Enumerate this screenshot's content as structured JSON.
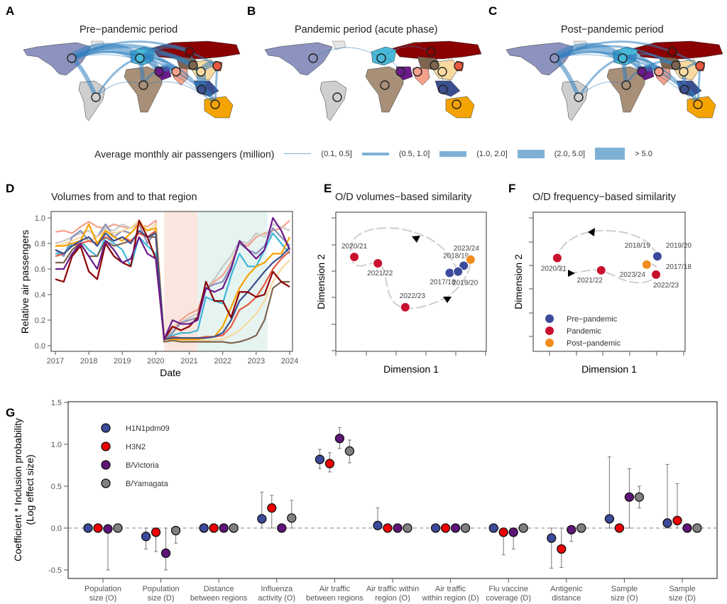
{
  "panels": {
    "A": "A",
    "B": "B",
    "C": "C",
    "D": "D",
    "E": "E",
    "F": "F",
    "G": "G"
  },
  "maps": {
    "titles": [
      "Pre−pandemic period",
      "Pandemic period (acute phase)",
      "Post−pandemic period"
    ],
    "region_colors": {
      "north_america": "#8c93bf",
      "south_america": "#cfcfcf",
      "europe": "#4ab8d8",
      "africa": "#a88f78",
      "middle_east": "#6a1b8a",
      "south_asia": "#f4a08a",
      "russia": "#8b0000",
      "central_asia": "#7f6450",
      "china": "#f8d9a0",
      "japan": "#e85a40",
      "southeast_asia": "#3b4f8f",
      "oceania": "#f5a300"
    },
    "edges": [
      [
        [
          "north_america",
          "europe",
          5
        ],
        [
          "north_america",
          "south_america",
          3
        ],
        [
          "europe",
          "africa",
          3
        ],
        [
          "europe",
          "middle_east",
          4
        ],
        [
          "europe",
          "south_asia",
          3
        ],
        [
          "europe",
          "china",
          3
        ],
        [
          "china",
          "southeast_asia",
          5
        ],
        [
          "china",
          "japan",
          4
        ],
        [
          "southeast_asia",
          "oceania",
          3
        ],
        [
          "north_america",
          "china",
          3
        ],
        [
          "north_america",
          "japan",
          2
        ],
        [
          "europe",
          "russia",
          3
        ],
        [
          "middle_east",
          "south_asia",
          4
        ],
        [
          "south_america",
          "europe",
          2
        ],
        [
          "africa",
          "middle_east",
          2
        ],
        [
          "north_america",
          "oceania",
          1
        ],
        [
          "europe",
          "southeast_asia",
          2
        ],
        [
          "south_america",
          "africa",
          1
        ],
        [
          "africa",
          "oceania",
          1
        ],
        [
          "japan",
          "oceania",
          2
        ],
        [
          "central_asia",
          "russia",
          2
        ],
        [
          "north_america",
          "southeast_asia",
          2
        ]
      ],
      [
        [
          "north_america",
          "europe",
          1
        ],
        [
          "europe",
          "middle_east",
          1
        ],
        [
          "china",
          "southeast_asia",
          1
        ],
        [
          "europe",
          "russia",
          1
        ]
      ],
      [
        [
          "north_america",
          "europe",
          5
        ],
        [
          "north_america",
          "south_america",
          3
        ],
        [
          "europe",
          "africa",
          3
        ],
        [
          "europe",
          "middle_east",
          4
        ],
        [
          "europe",
          "south_asia",
          3
        ],
        [
          "europe",
          "china",
          2
        ],
        [
          "china",
          "southeast_asia",
          3
        ],
        [
          "china",
          "japan",
          2
        ],
        [
          "southeast_asia",
          "oceania",
          3
        ],
        [
          "north_america",
          "china",
          2
        ],
        [
          "north_america",
          "japan",
          2
        ],
        [
          "middle_east",
          "south_asia",
          4
        ],
        [
          "south_america",
          "europe",
          2
        ],
        [
          "africa",
          "middle_east",
          2
        ],
        [
          "north_america",
          "oceania",
          1
        ],
        [
          "europe",
          "southeast_asia",
          2
        ],
        [
          "south_america",
          "africa",
          1
        ],
        [
          "japan",
          "oceania",
          2
        ],
        [
          "north_america",
          "southeast_asia",
          2
        ],
        [
          "central_asia",
          "middle_east",
          2
        ]
      ]
    ],
    "legend": {
      "title": "Average monthly air passengers (million)",
      "items": [
        "(0.1, 0.5]",
        "(0.5, 1.0]",
        "(1.0, 2.0]",
        "(2.0, 5.0]",
        "> 5.0"
      ],
      "color": "#7fb1d6"
    }
  },
  "chart_data": [
    {
      "type": "line",
      "title": "Volumes from and to that region",
      "xlabel": "Date",
      "ylabel": "Relative air passengers",
      "xlim": [
        "2017-01",
        "2024-01"
      ],
      "ylim": [
        0,
        1.0
      ],
      "xticks": [
        "2017",
        "2018",
        "2019",
        "2020",
        "2021",
        "2022",
        "2023",
        "2024"
      ],
      "yticks": [
        "0.0",
        "0.2",
        "0.4",
        "0.6",
        "0.8",
        "1.0"
      ],
      "shaded_periods": [
        {
          "from": "2020-04",
          "to": "2021-04",
          "color": "#fbe6df"
        },
        {
          "from": "2021-04",
          "to": "2023-05",
          "color": "#e6f4f1"
        }
      ],
      "x": [
        "2017-01",
        "2017-04",
        "2017-07",
        "2017-10",
        "2018-01",
        "2018-04",
        "2018-07",
        "2018-10",
        "2019-01",
        "2019-04",
        "2019-07",
        "2019-10",
        "2020-01",
        "2020-04",
        "2020-07",
        "2020-10",
        "2021-01",
        "2021-04",
        "2021-07",
        "2021-10",
        "2022-01",
        "2022-04",
        "2022-07",
        "2022-10",
        "2023-01",
        "2023-04",
        "2023-07",
        "2023-10",
        "2024-01"
      ],
      "series": [
        {
          "color": "#f4a08a",
          "values": [
            0.89,
            0.9,
            0.88,
            0.93,
            0.97,
            0.93,
            0.92,
            0.95,
            0.93,
            0.92,
            0.95,
            0.93,
            0.98,
            0.05,
            0.12,
            0.2,
            0.25,
            0.28,
            0.45,
            0.5,
            0.55,
            0.65,
            0.8,
            0.78,
            0.85,
            0.88,
            0.9,
            0.92,
            0.98
          ]
        },
        {
          "color": "#c8c8c8",
          "values": [
            0.8,
            0.82,
            0.85,
            0.88,
            0.9,
            0.85,
            0.92,
            0.9,
            0.95,
            0.92,
            0.97,
            0.9,
            0.95,
            0.05,
            0.12,
            0.18,
            0.22,
            0.25,
            0.45,
            0.52,
            0.62,
            0.7,
            0.82,
            0.8,
            0.88,
            0.85,
            0.95,
            0.93,
            0.9
          ]
        },
        {
          "color": "#8890b8",
          "values": [
            0.75,
            0.7,
            0.85,
            0.9,
            0.82,
            0.85,
            0.95,
            0.85,
            0.9,
            0.88,
            0.95,
            0.8,
            0.9,
            0.05,
            0.1,
            0.18,
            0.2,
            0.22,
            0.45,
            0.48,
            0.5,
            0.62,
            0.8,
            0.75,
            0.72,
            0.78,
            0.92,
            0.85,
            0.78
          ]
        },
        {
          "color": "#3fb6d8",
          "values": [
            0.72,
            0.72,
            0.8,
            0.82,
            0.75,
            0.7,
            0.85,
            0.8,
            0.75,
            0.62,
            0.85,
            0.78,
            0.72,
            0.05,
            0.08,
            0.1,
            0.1,
            0.12,
            0.38,
            0.35,
            0.33,
            0.55,
            0.72,
            0.62,
            0.62,
            0.75,
            0.88,
            0.8,
            0.72
          ]
        },
        {
          "color": "#f8d9a0",
          "values": [
            0.78,
            0.8,
            0.82,
            0.85,
            0.82,
            0.85,
            0.9,
            0.88,
            0.9,
            0.92,
            0.98,
            0.9,
            0.95,
            0.04,
            0.04,
            0.04,
            0.04,
            0.04,
            0.04,
            0.05,
            0.05,
            0.08,
            0.12,
            0.18,
            0.25,
            0.35,
            0.5,
            0.6,
            0.67
          ]
        },
        {
          "color": "#7f6450",
          "values": [
            0.65,
            0.65,
            0.75,
            0.8,
            0.7,
            0.7,
            0.82,
            0.78,
            0.8,
            0.82,
            0.88,
            0.85,
            0.85,
            0.03,
            0.04,
            0.03,
            0.03,
            0.03,
            0.03,
            0.03,
            0.03,
            0.02,
            0.03,
            0.05,
            0.08,
            0.2,
            0.45,
            0.5,
            0.5
          ]
        },
        {
          "color": "#e85a40",
          "values": [
            0.7,
            0.72,
            0.78,
            0.8,
            0.82,
            0.8,
            0.85,
            0.82,
            0.85,
            0.82,
            0.88,
            0.85,
            0.9,
            0.05,
            0.07,
            0.06,
            0.06,
            0.06,
            0.07,
            0.07,
            0.08,
            0.15,
            0.28,
            0.32,
            0.38,
            0.48,
            0.6,
            0.68,
            0.74
          ]
        },
        {
          "color": "#f5a300",
          "values": [
            0.78,
            0.78,
            0.8,
            0.82,
            0.95,
            0.8,
            0.9,
            0.85,
            0.82,
            0.88,
            0.95,
            0.9,
            0.92,
            0.05,
            0.05,
            0.05,
            0.05,
            0.05,
            0.06,
            0.07,
            0.15,
            0.3,
            0.45,
            0.55,
            0.62,
            0.65,
            0.72,
            0.72,
            0.85
          ]
        },
        {
          "color": "#3b4f8f",
          "values": [
            0.75,
            0.72,
            0.78,
            0.82,
            0.85,
            0.78,
            0.88,
            0.82,
            0.85,
            0.8,
            0.9,
            0.85,
            0.88,
            0.05,
            0.06,
            0.06,
            0.06,
            0.06,
            0.06,
            0.07,
            0.1,
            0.2,
            0.35,
            0.42,
            0.5,
            0.58,
            0.65,
            0.7,
            0.77
          ]
        },
        {
          "color": "#8b0000",
          "values": [
            0.52,
            0.5,
            0.7,
            0.78,
            0.58,
            0.52,
            0.8,
            0.7,
            0.65,
            0.62,
            0.98,
            0.85,
            0.68,
            0.05,
            0.15,
            0.12,
            0.15,
            0.22,
            0.5,
            0.35,
            0.35,
            0.22,
            0.42,
            0.42,
            0.38,
            0.4,
            0.58,
            0.5,
            0.46
          ]
        },
        {
          "color": "#6a1b8a",
          "values": [
            0.6,
            0.6,
            0.72,
            0.8,
            0.7,
            0.6,
            0.82,
            0.75,
            0.65,
            0.68,
            0.85,
            0.72,
            0.68,
            0.05,
            0.2,
            0.17,
            0.17,
            0.2,
            0.45,
            0.42,
            0.45,
            0.6,
            0.82,
            0.75,
            0.68,
            0.75,
            1.0,
            0.9,
            0.75
          ]
        }
      ]
    },
    {
      "type": "scatter",
      "title": "O/D volumes−based similarity",
      "xlabel": "Dimension 1",
      "ylabel": "Dimension 2",
      "points": [
        {
          "label": "2017/18",
          "group": "Pre-pandemic",
          "x": 3.82,
          "y": 2.92
        },
        {
          "label": "2018/19",
          "group": "Pre-pandemic",
          "x": 4.29,
          "y": 3.19
        },
        {
          "label": "2019/20",
          "group": "Pre-pandemic",
          "x": 4.1,
          "y": 2.97
        },
        {
          "label": "2020/21",
          "group": "Pandemic",
          "x": 0.62,
          "y": 3.52
        },
        {
          "label": "2021/22",
          "group": "Pandemic",
          "x": 1.41,
          "y": 3.28
        },
        {
          "label": "2022/23",
          "group": "Pandemic",
          "x": 2.33,
          "y": 1.63
        },
        {
          "label": "2023/24",
          "group": "Post-pandemic",
          "x": 4.52,
          "y": 3.42
        }
      ]
    },
    {
      "type": "scatter",
      "title": "O/D frequency−based similarity",
      "xlabel": "Dimension 1",
      "ylabel": "Dimension 2",
      "legend": [
        "Pre−pandemic",
        "Pandemic",
        "Post−pandemic"
      ],
      "legend_position": "bottom-left",
      "points": [
        {
          "label": "2017/18",
          "group": "Pre-pandemic",
          "x": 4.03,
          "y": 3.38
        },
        {
          "label": "2018/19",
          "group": "Pre-pandemic",
          "x": 4.03,
          "y": 3.38
        },
        {
          "label": "2019/20",
          "group": "Pre-pandemic",
          "x": 4.03,
          "y": 3.38
        },
        {
          "label": "2020/21",
          "group": "Pandemic",
          "x": 0.29,
          "y": 3.31
        },
        {
          "label": "2021/22",
          "group": "Pandemic",
          "x": 1.93,
          "y": 2.79
        },
        {
          "label": "2022/23",
          "group": "Pandemic",
          "x": 3.98,
          "y": 2.61
        },
        {
          "label": "2023/24",
          "group": "Post-pandemic",
          "x": 3.63,
          "y": 3.03
        }
      ]
    },
    {
      "type": "scatter",
      "ylabel": "Coefficient * Inclusion probability",
      "ylabel2": "(Log effect size)",
      "ylim": [
        -0.6,
        1.5
      ],
      "yticks": [
        "-0.5",
        "0.0",
        "0.5",
        "1.0",
        "1.5"
      ],
      "reference_line": 0,
      "categories": [
        [
          "Population",
          "size (O)"
        ],
        [
          "Population",
          "size (D)"
        ],
        [
          "Distance",
          "between regions"
        ],
        [
          "Influenza",
          "activity (O)"
        ],
        [
          "Air traffic",
          "between regions"
        ],
        [
          "Air traffic within",
          "region (O)"
        ],
        [
          "Air traffic",
          "within region (D)"
        ],
        [
          "Flu vaccine",
          "coverage (D)"
        ],
        [
          "Antigenic",
          "distance"
        ],
        [
          "Sample",
          "size (O)"
        ],
        [
          "Sample",
          "size (D)"
        ]
      ],
      "series": [
        {
          "name": "H1N1pdm09",
          "color": "#3b4a9a",
          "values": [
            0,
            -0.1,
            0,
            0.11,
            0.82,
            0.03,
            0,
            0,
            -0.12,
            0.11,
            0.06
          ],
          "lower": [
            0,
            -0.25,
            0,
            0,
            0.71,
            0,
            0,
            0,
            -0.48,
            0,
            0
          ],
          "upper": [
            0,
            0,
            0,
            0.43,
            0.94,
            0.24,
            0,
            0,
            0,
            0.85,
            0.76
          ]
        },
        {
          "name": "H3N2",
          "color": "#ee0000",
          "values": [
            0,
            -0.05,
            0,
            0.24,
            0.77,
            0,
            0,
            -0.05,
            -0.25,
            0,
            0.09
          ],
          "lower": [
            0,
            -0.28,
            0,
            0,
            0.67,
            0,
            0,
            -0.32,
            -0.47,
            0,
            0
          ],
          "upper": [
            0,
            0,
            0,
            0.39,
            0.9,
            0,
            0,
            0,
            0,
            0,
            0.53
          ]
        },
        {
          "name": "B/Victoria",
          "color": "#5e1577",
          "values": [
            -0.01,
            -0.3,
            0,
            0,
            1.07,
            0,
            0,
            -0.05,
            -0.02,
            0.37,
            0
          ],
          "lower": [
            -0.5,
            -0.5,
            0,
            0,
            0.95,
            0,
            0,
            -0.25,
            -0.16,
            0,
            0
          ],
          "upper": [
            0,
            0,
            0,
            0,
            1.2,
            0,
            0,
            0,
            0,
            0.71,
            0
          ]
        },
        {
          "name": "B/Yamagata",
          "color": "#808080",
          "values": [
            0,
            -0.03,
            0,
            0.12,
            0.92,
            0,
            0,
            0,
            0,
            0.37,
            0
          ],
          "lower": [
            0,
            -0.18,
            0,
            0,
            0.78,
            0,
            0,
            0,
            0,
            0.24,
            0
          ],
          "upper": [
            0,
            0,
            0,
            0.33,
            1.05,
            0,
            0,
            0,
            0,
            0.5,
            0
          ]
        }
      ]
    }
  ],
  "group_colors": {
    "Pre-pandemic": "#3b4a9a",
    "Pandemic": "#c8102e",
    "Post-pandemic": "#f28c1e"
  }
}
